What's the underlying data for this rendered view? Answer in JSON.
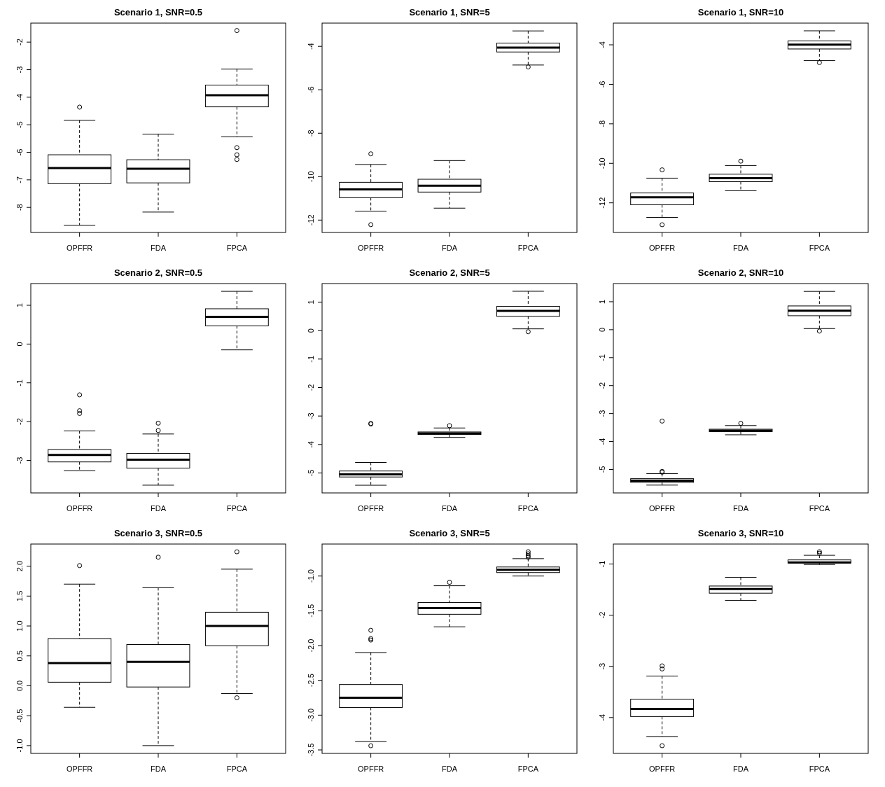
{
  "chart_data": [
    {
      "type": "box",
      "title": "Scenario 1, SNR=0.5",
      "categories": [
        "OPFFR",
        "FDA",
        "FPCA"
      ],
      "ylim": [
        -8.91,
        -1.31
      ],
      "yticks": [
        -8,
        -7,
        -6,
        -5,
        -4,
        -3,
        -2
      ],
      "boxes": [
        {
          "low": -8.65,
          "q1": -7.14,
          "median": -6.57,
          "q3": -6.09,
          "high": -4.84,
          "outliers": [
            -4.36
          ]
        },
        {
          "low": -8.17,
          "q1": -7.11,
          "median": -6.6,
          "q3": -6.27,
          "high": -5.34
        },
        {
          "low": -5.44,
          "q1": -4.35,
          "median": -3.93,
          "q3": -3.56,
          "high": -2.98,
          "outliers": [
            -1.58,
            -5.83,
            -6.09,
            -6.26
          ]
        }
      ]
    },
    {
      "type": "box",
      "title": "Scenario 1, SNR=5",
      "categories": [
        "OPFFR",
        "FDA",
        "FPCA"
      ],
      "ylim": [
        -12.57,
        -2.93
      ],
      "yticks": [
        -12,
        -10,
        -8,
        -6,
        -4
      ],
      "boxes": [
        {
          "low": -11.59,
          "q1": -10.97,
          "median": -10.59,
          "q3": -10.26,
          "high": -9.44,
          "outliers": [
            -8.95,
            -12.21
          ]
        },
        {
          "low": -11.45,
          "q1": -10.71,
          "median": -10.42,
          "q3": -10.12,
          "high": -9.26
        },
        {
          "low": -4.86,
          "q1": -4.26,
          "median": -4.06,
          "q3": -3.85,
          "high": -3.29,
          "outliers": [
            -4.95
          ]
        }
      ]
    },
    {
      "type": "box",
      "title": "Scenario 1, SNR=10",
      "categories": [
        "OPFFR",
        "FDA",
        "FPCA"
      ],
      "ylim": [
        -13.5,
        -2.9
      ],
      "yticks": [
        -12,
        -10,
        -8,
        -6,
        -4
      ],
      "boxes": [
        {
          "low": -12.74,
          "q1": -12.1,
          "median": -11.72,
          "q3": -11.5,
          "high": -10.75,
          "outliers": [
            -10.33,
            -13.11
          ]
        },
        {
          "low": -11.39,
          "q1": -10.93,
          "median": -10.75,
          "q3": -10.55,
          "high": -10.11,
          "outliers": [
            -9.89
          ]
        },
        {
          "low": -4.8,
          "q1": -4.21,
          "median": -3.99,
          "q3": -3.8,
          "high": -3.29,
          "outliers": [
            -4.9
          ]
        }
      ]
    },
    {
      "type": "box",
      "title": "Scenario 2, SNR=0.5",
      "categories": [
        "OPFFR",
        "FDA",
        "FPCA"
      ],
      "ylim": [
        -3.84,
        1.56
      ],
      "yticks": [
        -3,
        -2,
        -1,
        0,
        1
      ],
      "boxes": [
        {
          "low": -3.27,
          "q1": -3.04,
          "median": -2.86,
          "q3": -2.72,
          "high": -2.24,
          "outliers": [
            -1.31,
            -1.72,
            -1.79
          ]
        },
        {
          "low": -3.64,
          "q1": -3.2,
          "median": -2.98,
          "q3": -2.82,
          "high": -2.32,
          "outliers": [
            -2.04,
            -2.23
          ]
        },
        {
          "low": -0.15,
          "q1": 0.47,
          "median": 0.7,
          "q3": 0.91,
          "high": 1.36
        }
      ]
    },
    {
      "type": "box",
      "title": "Scenario 2, SNR=5",
      "categories": [
        "OPFFR",
        "FDA",
        "FPCA"
      ],
      "ylim": [
        -5.7,
        1.65
      ],
      "yticks": [
        -5,
        -4,
        -3,
        -2,
        -1,
        0,
        1
      ],
      "boxes": [
        {
          "low": -5.43,
          "q1": -5.14,
          "median": -5.05,
          "q3": -4.93,
          "high": -4.63,
          "outliers": [
            -3.26,
            -3.28
          ]
        },
        {
          "low": -3.75,
          "q1": -3.65,
          "median": -3.61,
          "q3": -3.56,
          "high": -3.42,
          "outliers": [
            -3.34
          ]
        },
        {
          "low": 0.06,
          "q1": 0.5,
          "median": 0.69,
          "q3": 0.85,
          "high": 1.38,
          "outliers": [
            -0.04
          ]
        }
      ]
    },
    {
      "type": "box",
      "title": "Scenario 2, SNR=10",
      "categories": [
        "OPFFR",
        "FDA",
        "FPCA"
      ],
      "ylim": [
        -5.84,
        1.65
      ],
      "yticks": [
        -5,
        -4,
        -3,
        -2,
        -1,
        0,
        1
      ],
      "boxes": [
        {
          "low": -5.56,
          "q1": -5.46,
          "median": -5.4,
          "q3": -5.33,
          "high": -5.15,
          "outliers": [
            -3.27,
            -5.07,
            -5.1
          ]
        },
        {
          "low": -3.76,
          "q1": -3.65,
          "median": -3.61,
          "q3": -3.56,
          "high": -3.43,
          "outliers": [
            -3.35
          ]
        },
        {
          "low": 0.04,
          "q1": 0.5,
          "median": 0.68,
          "q3": 0.85,
          "high": 1.37,
          "outliers": [
            -0.05
          ]
        }
      ]
    },
    {
      "type": "box",
      "title": "Scenario 3, SNR=0.5",
      "categories": [
        "OPFFR",
        "FDA",
        "FPCA"
      ],
      "ylim": [
        -1.13,
        2.37
      ],
      "yticks": [
        {
          "value": -1,
          "label": "-1.0"
        },
        -0.5,
        {
          "value": 0,
          "label": "0.0"
        },
        0.5,
        {
          "value": 1,
          "label": "1.0"
        },
        1.5,
        {
          "value": 2,
          "label": "2.0"
        }
      ],
      "boxes": [
        {
          "low": -0.36,
          "q1": 0.06,
          "median": 0.38,
          "q3": 0.79,
          "high": 1.7,
          "outliers": [
            2.01
          ]
        },
        {
          "low": -1.0,
          "q1": -0.02,
          "median": 0.4,
          "q3": 0.69,
          "high": 1.64,
          "outliers": [
            2.15
          ]
        },
        {
          "low": -0.13,
          "q1": 0.67,
          "median": 1.0,
          "q3": 1.23,
          "high": 1.95,
          "outliers": [
            2.24,
            -0.2
          ]
        }
      ]
    },
    {
      "type": "box",
      "title": "Scenario 3, SNR=5",
      "categories": [
        "OPFFR",
        "FDA",
        "FPCA"
      ],
      "ylim": [
        -3.55,
        -0.54
      ],
      "yticks": [
        -3.5,
        {
          "value": -3,
          "label": "-3.0"
        },
        -2.5,
        {
          "value": -2,
          "label": "-2.0"
        },
        -1.5,
        {
          "value": -1,
          "label": "-1.0"
        }
      ],
      "boxes": [
        {
          "low": -3.38,
          "q1": -2.89,
          "median": -2.75,
          "q3": -2.56,
          "high": -2.1,
          "outliers": [
            -1.78,
            -1.9,
            -1.92,
            -3.44
          ]
        },
        {
          "low": -1.73,
          "q1": -1.55,
          "median": -1.46,
          "q3": -1.38,
          "high": -1.14,
          "outliers": [
            -1.09
          ]
        },
        {
          "low": -1.0,
          "q1": -0.95,
          "median": -0.91,
          "q3": -0.87,
          "high": -0.75,
          "outliers": [
            -0.65,
            -0.68,
            -0.71,
            -0.73
          ]
        }
      ]
    },
    {
      "type": "box",
      "title": "Scenario 3, SNR=10",
      "categories": [
        "OPFFR",
        "FDA",
        "FPCA"
      ],
      "ylim": [
        -4.7,
        -0.61
      ],
      "yticks": [
        -4,
        -3,
        -2,
        -1
      ],
      "boxes": [
        {
          "low": -4.37,
          "q1": -3.98,
          "median": -3.83,
          "q3": -3.64,
          "high": -3.19,
          "outliers": [
            -2.99,
            -3.05,
            -4.55
          ]
        },
        {
          "low": -1.71,
          "q1": -1.57,
          "median": -1.49,
          "q3": -1.43,
          "high": -1.26
        },
        {
          "low": -1.01,
          "q1": -0.98,
          "median": -0.97,
          "q3": -0.92,
          "high": -0.83,
          "outliers": [
            -0.76,
            -0.79
          ]
        }
      ]
    }
  ]
}
